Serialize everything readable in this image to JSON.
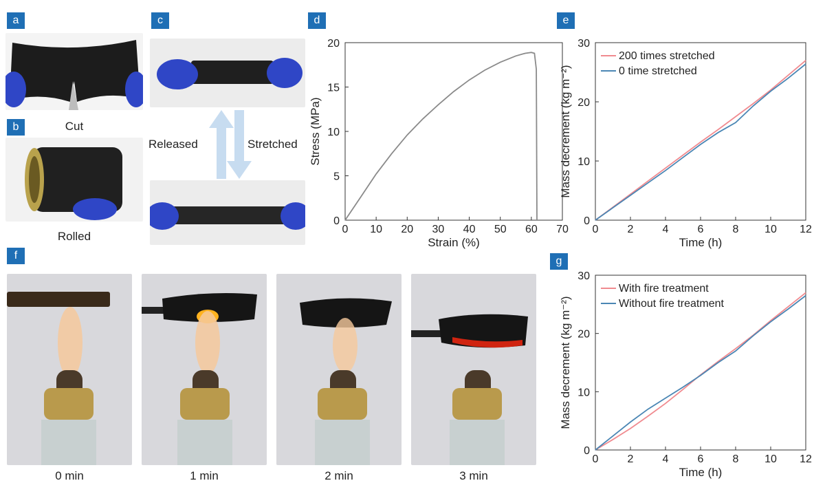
{
  "panels": {
    "a": {
      "label": "a",
      "caption": "Cut"
    },
    "b": {
      "label": "b",
      "caption": "Rolled"
    },
    "c": {
      "label": "c",
      "released": "Released",
      "stretched": "Stretched"
    },
    "d": {
      "label": "d"
    },
    "e": {
      "label": "e"
    },
    "f": {
      "label": "f",
      "captions": [
        "0 min",
        "1 min",
        "2 min",
        "3 min"
      ]
    },
    "g": {
      "label": "g"
    }
  },
  "colors": {
    "tag": "#1f6fb5",
    "red_series": "#f08a8f",
    "blue_series": "#4a86b4",
    "stress_curve": "#8a8a8a"
  },
  "chart_data": [
    {
      "id": "d",
      "type": "line",
      "xlabel": "Strain (%)",
      "ylabel": "Stress (MPa)",
      "xlim": [
        0,
        70
      ],
      "ylim": [
        0,
        20
      ],
      "xticks": [
        0,
        10,
        20,
        30,
        40,
        50,
        60,
        70
      ],
      "yticks": [
        0,
        5,
        10,
        15,
        20
      ],
      "grid": false,
      "series": [
        {
          "color": "#8a8a8a",
          "x": [
            0,
            5,
            10,
            15,
            20,
            25,
            30,
            35,
            40,
            45,
            50,
            55,
            58,
            60,
            61,
            61.6,
            61.8
          ],
          "y": [
            0,
            2.6,
            5.2,
            7.5,
            9.6,
            11.4,
            13.0,
            14.5,
            15.8,
            16.9,
            17.8,
            18.5,
            18.8,
            18.9,
            18.8,
            17.0,
            0
          ]
        }
      ]
    },
    {
      "id": "e",
      "type": "line",
      "xlabel": "Time (h)",
      "ylabel": "Mass decrement (kg m⁻²)",
      "xlim": [
        0,
        12
      ],
      "ylim": [
        0,
        30
      ],
      "xticks": [
        0,
        2,
        4,
        6,
        8,
        10,
        12
      ],
      "yticks": [
        0,
        10,
        20,
        30
      ],
      "legend": "top-left",
      "grid": false,
      "series": [
        {
          "name": "200 times stretched",
          "color": "#f08a8f",
          "x": [
            0,
            1,
            2,
            3,
            4,
            5,
            6,
            7,
            8,
            9,
            10,
            11,
            12
          ],
          "y": [
            0,
            2.2,
            4.4,
            6.6,
            8.8,
            11.0,
            13.2,
            15.3,
            17.5,
            19.7,
            22.0,
            24.5,
            27.0
          ]
        },
        {
          "name": "0 time stretched",
          "color": "#4a86b4",
          "x": [
            0,
            1,
            2,
            3,
            4,
            5,
            6,
            7,
            8,
            9,
            10,
            11,
            12
          ],
          "y": [
            0,
            2.1,
            4.2,
            6.3,
            8.4,
            10.6,
            12.8,
            14.8,
            16.5,
            19.3,
            21.8,
            24.0,
            26.4
          ]
        }
      ]
    },
    {
      "id": "g",
      "type": "line",
      "xlabel": "Time (h)",
      "ylabel": "Mass decrement (kg m⁻²)",
      "xlim": [
        0,
        12
      ],
      "ylim": [
        0,
        30
      ],
      "xticks": [
        0,
        2,
        4,
        6,
        8,
        10,
        12
      ],
      "yticks": [
        0,
        10,
        20,
        30
      ],
      "legend": "top-left",
      "grid": false,
      "series": [
        {
          "name": "With fire treatment",
          "color": "#f08a8f",
          "x": [
            0,
            1,
            2,
            3,
            4,
            5,
            6,
            7,
            8,
            9,
            10,
            11,
            12
          ],
          "y": [
            0,
            1.8,
            3.7,
            5.8,
            8.0,
            10.4,
            12.9,
            15.2,
            17.4,
            19.7,
            22.2,
            24.6,
            27.0
          ]
        },
        {
          "name": "Without fire treatment",
          "color": "#4a86b4",
          "x": [
            0,
            1,
            2,
            3,
            4,
            5,
            6,
            7,
            8,
            9,
            10,
            11,
            12
          ],
          "y": [
            0,
            2.4,
            4.8,
            7.0,
            8.9,
            10.8,
            12.8,
            15.0,
            17.0,
            19.6,
            22.0,
            24.2,
            26.5
          ]
        }
      ]
    }
  ]
}
